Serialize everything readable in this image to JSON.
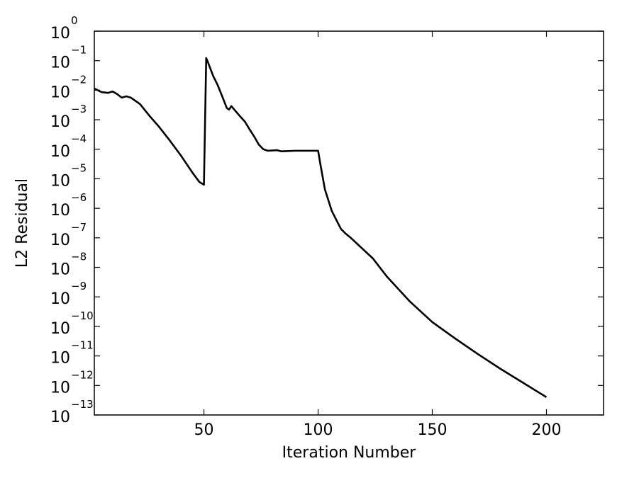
{
  "chart_data": {
    "type": "line",
    "xlabel": "Iteration Number",
    "ylabel": "L2 Residual",
    "log_y": true,
    "xlim": [
      2,
      225
    ],
    "ylim": [
      1e-13,
      1
    ],
    "xticks": [
      50,
      100,
      150,
      200
    ],
    "yticks": [
      {
        "value": 1,
        "label": "10",
        "exponent": "0"
      },
      {
        "value": 0.1,
        "label": "10",
        "exponent": "−1"
      },
      {
        "value": 0.01,
        "label": "10",
        "exponent": "−2"
      },
      {
        "value": 0.001,
        "label": "10",
        "exponent": "−3"
      },
      {
        "value": 0.0001,
        "label": "10",
        "exponent": "−4"
      },
      {
        "value": 1e-05,
        "label": "10",
        "exponent": "−5"
      },
      {
        "value": 1e-06,
        "label": "10",
        "exponent": "−6"
      },
      {
        "value": 1e-07,
        "label": "10",
        "exponent": "−7"
      },
      {
        "value": 1e-08,
        "label": "10",
        "exponent": "−8"
      },
      {
        "value": 1e-09,
        "label": "10",
        "exponent": "−9"
      },
      {
        "value": 1e-10,
        "label": "10",
        "exponent": "−10"
      },
      {
        "value": 1e-11,
        "label": "10",
        "exponent": "−11"
      },
      {
        "value": 1e-12,
        "label": "10",
        "exponent": "−12"
      },
      {
        "value": 1e-13,
        "label": "10",
        "exponent": "−13"
      }
    ],
    "series": [
      {
        "color": "#000000",
        "x": [
          2,
          5,
          8,
          10,
          12,
          14,
          16,
          18,
          22,
          26,
          30,
          35,
          40,
          45,
          48,
          50,
          51,
          52,
          54,
          56,
          58,
          60,
          61,
          62,
          64,
          66,
          68,
          70,
          72,
          74,
          76,
          78,
          82,
          84,
          90,
          100,
          101,
          103,
          106,
          110,
          112,
          114,
          118,
          124,
          130,
          140,
          150,
          160,
          170,
          180,
          190,
          200
        ],
        "values": [
          0.0115,
          0.0087,
          0.0081,
          0.0091,
          0.0074,
          0.0056,
          0.0062,
          0.0056,
          0.0034,
          0.0014,
          0.00062,
          0.0002,
          6e-05,
          1.6e-05,
          7.8e-06,
          6.3e-06,
          0.123,
          0.079,
          0.031,
          0.015,
          0.0062,
          0.0025,
          0.0022,
          0.0029,
          0.0019,
          0.00126,
          0.00085,
          0.00047,
          0.00027,
          0.000145,
          0.0001,
          8.9e-05,
          9.3e-05,
          8.5e-05,
          8.9e-05,
          8.9e-05,
          3.1e-05,
          4.3e-06,
          8.1e-07,
          2e-07,
          1.4e-07,
          1.05e-07,
          5.4e-08,
          2e-08,
          5e-09,
          7.2e-10,
          1.4e-10,
          3.9e-11,
          1.15e-11,
          3.6e-12,
          1.2e-12,
          4e-13
        ]
      }
    ]
  }
}
